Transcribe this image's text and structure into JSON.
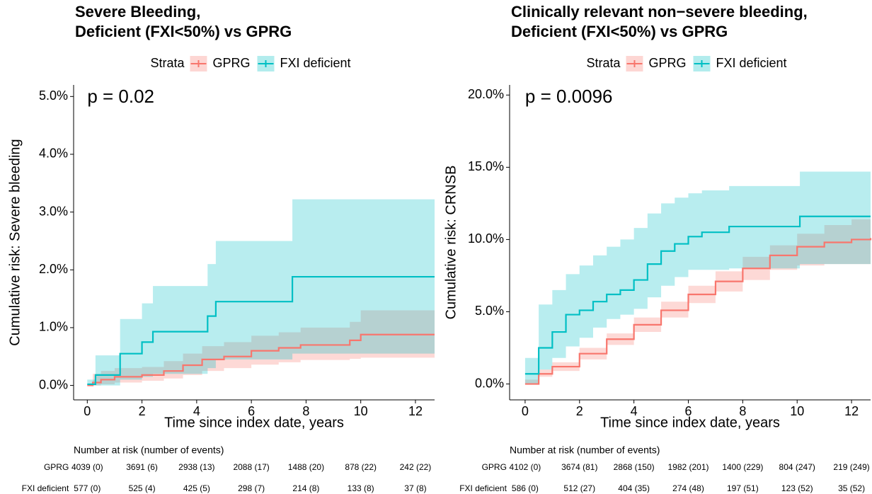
{
  "chart_data": [
    {
      "type": "line",
      "step": true,
      "band": true,
      "title": [
        "Severe Bleeding,",
        "Deficient (FXI<50%) vs GPRG"
      ],
      "legend_title": "Strata",
      "annotation": "p = 0.02",
      "xlabel": "Time since index date, years",
      "ylabel": "Cumulative risk: Severe bleeding",
      "xlim": [
        -0.5,
        12.7
      ],
      "ylim": [
        -0.25,
        5.2
      ],
      "xticks": [
        0,
        2,
        4,
        6,
        8,
        10,
        12
      ],
      "yticks": [
        {
          "value": 0,
          "label": "0.0%"
        },
        {
          "value": 1,
          "label": "1.0%"
        },
        {
          "value": 2,
          "label": "2.0%"
        },
        {
          "value": 3,
          "label": "3.0%"
        },
        {
          "value": 4,
          "label": "4.0%"
        },
        {
          "value": 5,
          "label": "5.0%"
        }
      ],
      "series": [
        {
          "name": "GPRG",
          "color": "#F8766D",
          "x": [
            0,
            0.2,
            0.5,
            1,
            2,
            2.8,
            3.5,
            4.2,
            5,
            6,
            7,
            7.8,
            9.6,
            10,
            12.7
          ],
          "values": [
            0,
            0.05,
            0.1,
            0.15,
            0.18,
            0.25,
            0.35,
            0.45,
            0.5,
            0.6,
            0.65,
            0.7,
            0.78,
            0.88,
            0.88
          ],
          "lower": [
            0,
            0,
            0.02,
            0.05,
            0.08,
            0.12,
            0.18,
            0.25,
            0.3,
            0.36,
            0.4,
            0.44,
            0.46,
            0.48,
            0.48
          ],
          "upper": [
            0,
            0.2,
            0.25,
            0.3,
            0.32,
            0.42,
            0.55,
            0.68,
            0.75,
            0.86,
            0.92,
            1.0,
            1.1,
            1.3,
            1.3
          ]
        },
        {
          "name": "FXI deficient",
          "color": "#00BFC4",
          "x": [
            0,
            0.3,
            1.2,
            2.0,
            2.4,
            4.4,
            4.7,
            7.5,
            12.7
          ],
          "values": [
            0.02,
            0.18,
            0.55,
            0.75,
            0.93,
            1.2,
            1.45,
            1.88,
            1.88
          ],
          "lower": [
            0,
            0,
            0.1,
            0.15,
            0.2,
            0.3,
            0.45,
            0.55,
            0.55
          ],
          "upper": [
            0.1,
            0.52,
            1.15,
            1.42,
            1.72,
            2.1,
            2.5,
            3.22,
            3.22
          ]
        }
      ],
      "risk_table": {
        "title": "Number at risk (number of events)",
        "rows": [
          {
            "name": "GPRG",
            "color": "#F8766D",
            "cells": [
              "4039 (0)",
              "3691 (6)",
              "2938 (13)",
              "2088 (17)",
              "1488 (20)",
              "878 (22)",
              "242 (22)"
            ]
          },
          {
            "name": "FXI deficient",
            "color": "#00BFC4",
            "cells": [
              "577 (0)",
              "525 (4)",
              "425 (5)",
              "298 (7)",
              "214 (8)",
              "133 (8)",
              "37 (8)"
            ]
          }
        ]
      }
    },
    {
      "type": "line",
      "step": true,
      "band": true,
      "title": [
        "Clinically relevant non−severe bleeding,",
        "Deficient (FXI<50%) vs GPRG"
      ],
      "legend_title": "Strata",
      "annotation": "p = 0.0096",
      "xlabel": "Time since index date, years",
      "ylabel": "Cumulative risk: CRNSB",
      "xlim": [
        -0.57,
        12.7
      ],
      "ylim": [
        -1.1,
        20.7
      ],
      "xticks": [
        0,
        2,
        4,
        6,
        8,
        10,
        12
      ],
      "yticks": [
        {
          "value": 0,
          "label": "0.0%"
        },
        {
          "value": 5,
          "label": "5.0%"
        },
        {
          "value": 10,
          "label": "10.0%"
        },
        {
          "value": 15,
          "label": "15.0%"
        },
        {
          "value": 20,
          "label": "20.0%"
        }
      ],
      "series": [
        {
          "name": "GPRG",
          "color": "#F8766D",
          "x": [
            0,
            0.5,
            1,
            2,
            3,
            4,
            5,
            6,
            7,
            8,
            9,
            10,
            11,
            12,
            12.7
          ],
          "values": [
            0,
            0.7,
            1.2,
            2.1,
            3.1,
            4.1,
            5.1,
            6.2,
            7.1,
            8.0,
            8.9,
            9.5,
            9.8,
            10.0,
            10.1
          ],
          "lower": [
            0,
            0.5,
            0.9,
            1.7,
            2.7,
            3.6,
            4.6,
            5.6,
            6.4,
            7.2,
            7.9,
            8.2,
            8.3,
            8.3,
            8.3
          ],
          "upper": [
            0.3,
            1.0,
            1.5,
            2.5,
            3.5,
            4.6,
            5.7,
            6.8,
            7.8,
            8.8,
            9.6,
            10.4,
            11.0,
            11.4,
            11.5
          ]
        },
        {
          "name": "FXI deficient",
          "color": "#00BFC4",
          "x": [
            0,
            0.5,
            1,
            1.5,
            2,
            2.5,
            3,
            3.5,
            4,
            4.5,
            5,
            5.5,
            6,
            6.5,
            7.5,
            10.1,
            12.7
          ],
          "values": [
            0.7,
            2.5,
            3.6,
            4.8,
            5.1,
            5.7,
            6.2,
            6.5,
            7.2,
            8.3,
            9.2,
            9.7,
            10.2,
            10.5,
            10.9,
            11.6,
            11.6
          ],
          "lower": [
            0,
            1.0,
            1.8,
            2.6,
            3.2,
            3.9,
            4.5,
            4.8,
            5.2,
            6.0,
            6.8,
            7.4,
            7.9,
            7.9,
            8.0,
            8.3,
            8.4
          ],
          "upper": [
            1.8,
            5.5,
            6.5,
            7.6,
            8.2,
            8.9,
            9.5,
            10.0,
            10.8,
            11.8,
            12.5,
            12.9,
            13.2,
            13.4,
            13.7,
            14.7,
            14.7
          ]
        }
      ],
      "risk_table": {
        "title": "Number at risk (number of events)",
        "rows": [
          {
            "name": "GPRG",
            "color": "#F8766D",
            "cells": [
              "4102 (0)",
              "3674 (81)",
              "2868 (150)",
              "1982 (201)",
              "1400 (229)",
              "804 (247)",
              "219 (249)"
            ]
          },
          {
            "name": "FXI deficient",
            "color": "#00BFC4",
            "cells": [
              "586 (0)",
              "512 (27)",
              "404 (35)",
              "274 (48)",
              "197 (51)",
              "123 (52)",
              "35 (52)"
            ]
          }
        ]
      }
    }
  ]
}
